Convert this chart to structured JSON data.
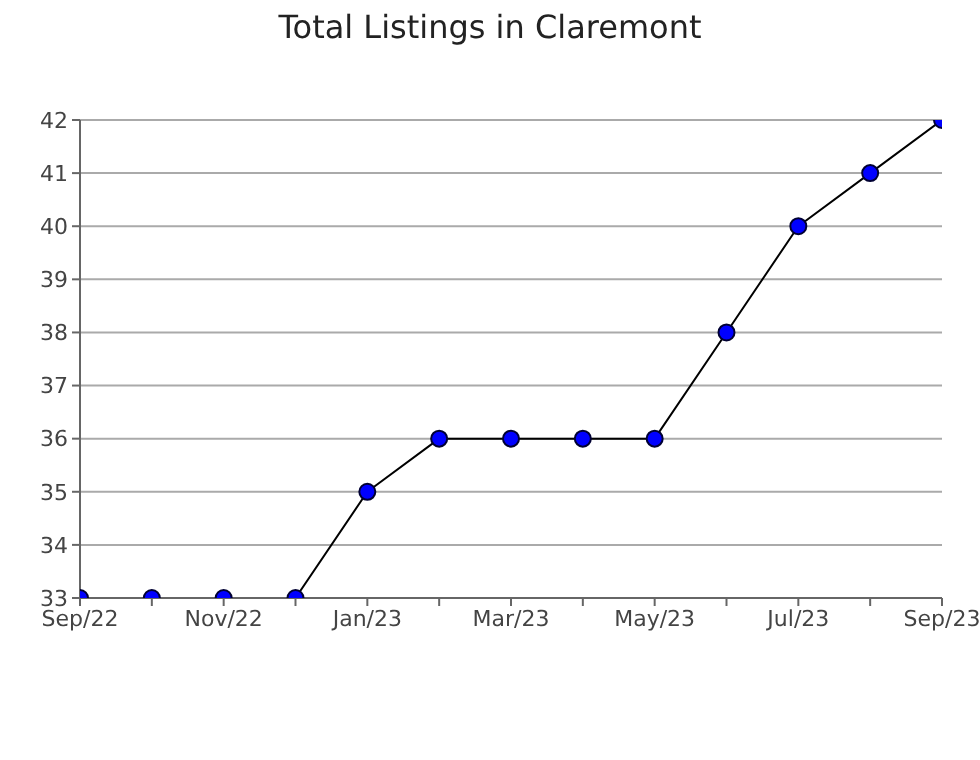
{
  "chart_data": {
    "type": "line",
    "title": "Total Listings in Claremont",
    "categories": [
      "Sep/22",
      null,
      "Nov/22",
      null,
      "Jan/23",
      null,
      "Mar/23",
      null,
      "May/23",
      null,
      "Jul/23",
      null,
      "Sep/23"
    ],
    "series": [
      {
        "color": "#0000ff",
        "values": [
          33,
          33,
          33,
          33,
          35,
          36,
          36,
          36,
          36,
          38,
          40,
          41,
          42
        ]
      }
    ],
    "ylim": [
      33,
      42
    ],
    "yticks": [
      33,
      34,
      35,
      36,
      37,
      38,
      39,
      40,
      41,
      42
    ],
    "grid": "y",
    "marker": "circle",
    "line_style": "solid"
  }
}
